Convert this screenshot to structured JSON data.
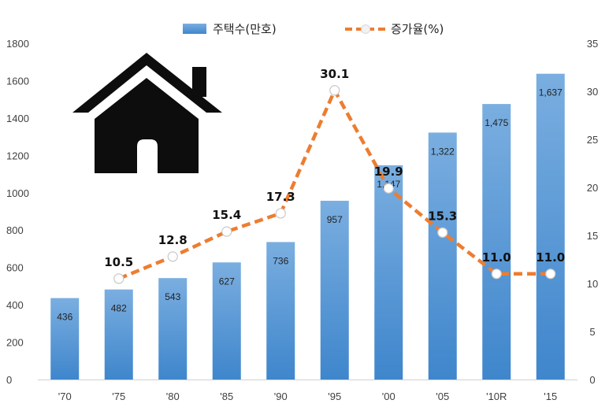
{
  "chart_data": {
    "type": "bar",
    "categories": [
      "'70",
      "'75",
      "'80",
      "'85",
      "'90",
      "'95",
      "'00",
      "'05",
      "'10R",
      "'15"
    ],
    "series": [
      {
        "name": "주택수(만호)",
        "type": "bar",
        "axis": "left",
        "values": [
          436,
          482,
          543,
          627,
          736,
          957,
          1147,
          1322,
          1475,
          1637
        ],
        "labels": [
          "436",
          "482",
          "543",
          "627",
          "736",
          "957",
          "1,147",
          "1,322",
          "1,475",
          "1,637"
        ]
      },
      {
        "name": "증가율(%)",
        "type": "line",
        "axis": "right",
        "values": [
          null,
          10.5,
          12.8,
          15.4,
          17.3,
          30.1,
          19.9,
          15.3,
          11.0,
          11.0
        ],
        "labels": [
          "",
          "10.5",
          "12.8",
          "15.4",
          "17.3",
          "30.1",
          "19.9",
          "15.3",
          "11.0",
          "11.0"
        ]
      }
    ],
    "y_left": {
      "ylim": [
        0,
        1800
      ],
      "ticks": [
        "0",
        "200",
        "400",
        "600",
        "800",
        "1000",
        "1200",
        "1400",
        "1600",
        "1800"
      ]
    },
    "y_right": {
      "ylim": [
        0,
        35
      ],
      "ticks": [
        "0",
        "5",
        "10",
        "15",
        "20",
        "25",
        "30",
        "35"
      ]
    },
    "legend_position": "top-center",
    "grid": false,
    "colors": {
      "bar_top": "#7aaee0",
      "bar_bottom": "#3f86cc",
      "line": "#ed7d31",
      "marker_fill": "#ffffff"
    },
    "decoration_icon": "house-icon"
  }
}
